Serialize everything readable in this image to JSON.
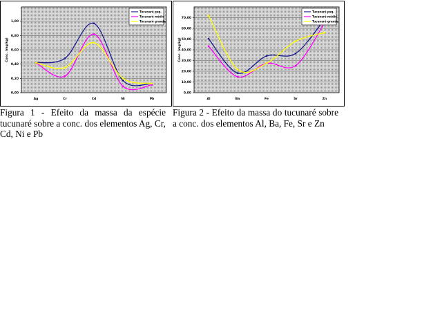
{
  "colors": {
    "plot_bg": "#c8c8c8",
    "series_small": "#1a1a8c",
    "series_medium": "#ff00ff",
    "series_large": "#ffff00"
  },
  "chart_data": [
    {
      "type": "line",
      "categories": [
        "Ag",
        "Cr",
        "Cd",
        "Ni",
        "Pb"
      ],
      "ylabel": "Conc. (mg/kg)",
      "ylim": [
        0,
        1.2
      ],
      "yticks": [
        "0,00",
        "0,20",
        "0,40",
        "0,60",
        "0,80",
        "1,00"
      ],
      "grid": true,
      "legend_position": "top-right",
      "series": [
        {
          "name": "Tucunaré peq.",
          "values": [
            0.42,
            0.48,
            0.97,
            0.17,
            0.13
          ]
        },
        {
          "name": "Tucunaré médio",
          "values": [
            0.42,
            0.23,
            0.82,
            0.09,
            0.11
          ]
        },
        {
          "name": "Tucunaré grande",
          "values": [
            0.42,
            0.35,
            0.7,
            0.2,
            0.13
          ]
        }
      ],
      "caption": "Figura 1 - Efeito da massa da espécie tucunaré sobre a conc. dos elementos Ag, Cr, Cd, Ni e Pb"
    },
    {
      "type": "line",
      "categories": [
        "Al",
        "Ba",
        "Fe",
        "Sr",
        "Zn"
      ],
      "ylabel": "Conc. (mg/kg)",
      "ylim": [
        0,
        70
      ],
      "yticks": [
        "0,00",
        "10,00",
        "20,00",
        "30,00",
        "40,00",
        "50,00",
        "60,00",
        "70,00"
      ],
      "grid": true,
      "legend_position": "top-right",
      "series": [
        {
          "name": "Tucunaré peq.",
          "values": [
            44,
            16,
            30,
            32,
            60
          ]
        },
        {
          "name": "Tucunaré médio",
          "values": [
            38,
            13,
            24,
            22,
            57
          ]
        },
        {
          "name": "Tucunaré grande",
          "values": [
            63,
            19,
            24,
            42,
            49
          ]
        }
      ],
      "caption": "Figura 2 - Efeito da massa do tucunaré sobre a conc. dos elementos Al, Ba, Fe, Sr e Zn"
    }
  ]
}
